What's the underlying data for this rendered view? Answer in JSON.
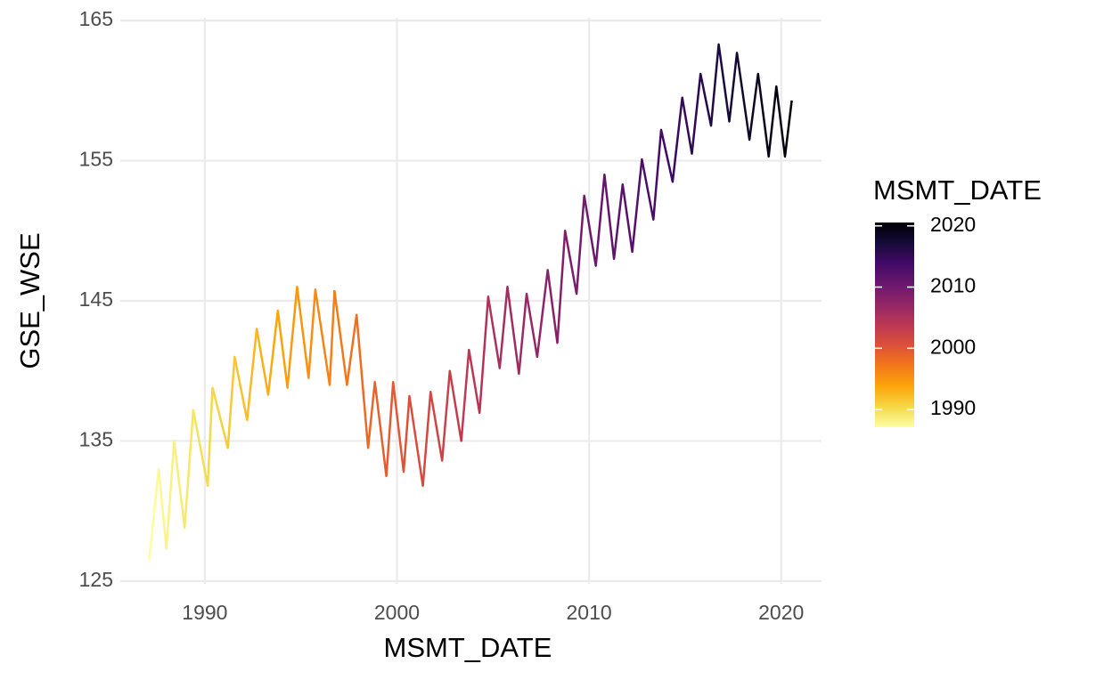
{
  "chart_data": {
    "type": "line",
    "x": [
      1987.1,
      1987.6,
      1988.0,
      1988.4,
      1988.95,
      1989.4,
      1990.15,
      1990.4,
      1991.2,
      1991.55,
      1992.2,
      1992.7,
      1993.3,
      1993.8,
      1994.3,
      1994.8,
      1995.4,
      1995.75,
      1996.5,
      1996.75,
      1997.4,
      1997.9,
      1998.5,
      1998.85,
      1999.45,
      1999.8,
      2000.35,
      2000.65,
      2001.35,
      2001.75,
      2002.35,
      2002.75,
      2003.35,
      2003.75,
      2004.3,
      2004.75,
      2005.35,
      2005.75,
      2006.35,
      2006.75,
      2007.3,
      2007.85,
      2008.35,
      2008.75,
      2009.35,
      2009.75,
      2010.35,
      2010.8,
      2011.3,
      2011.75,
      2012.25,
      2012.75,
      2013.35,
      2013.75,
      2014.35,
      2014.85,
      2015.35,
      2015.8,
      2016.35,
      2016.75,
      2017.3,
      2017.7,
      2018.35,
      2018.8,
      2019.35,
      2019.75,
      2020.2,
      2020.55
    ],
    "values": [
      126.5,
      133,
      127.3,
      135,
      128.8,
      137.2,
      131.8,
      138.8,
      134.5,
      141,
      136.5,
      143,
      138.3,
      144.3,
      138.8,
      146,
      139.5,
      145.8,
      139,
      145.7,
      139,
      144,
      134.5,
      139.2,
      132.5,
      139.2,
      132.8,
      138.2,
      131.8,
      138.5,
      133.6,
      140,
      135,
      141.5,
      137,
      145.3,
      140.2,
      146,
      139.8,
      145.5,
      141,
      147.2,
      142,
      150,
      145.5,
      152.5,
      147.5,
      154,
      148,
      153.3,
      148.5,
      155.1,
      150.8,
      157.2,
      153.5,
      159.5,
      155.5,
      161.2,
      157.5,
      163.3,
      157.8,
      162.7,
      156.5,
      161.2,
      155.3,
      160.3,
      155.3,
      159.3
    ],
    "xlabel": "MSMT_DATE",
    "ylabel": "GSE_WSE",
    "xlim": [
      1985.6,
      2022.1
    ],
    "xticks": [
      1990,
      2000,
      2010,
      2020
    ],
    "ylim": [
      124.8,
      165.2
    ],
    "yticks": [
      125,
      135,
      145,
      155,
      165
    ],
    "grid": true,
    "legend": {
      "title": "MSMT_DATE",
      "ticks": [
        1990,
        2000,
        2010,
        2020
      ],
      "colors": [
        "#fcffa4",
        "#f6d746",
        "#fca50a",
        "#f37819",
        "#dd513a",
        "#bc3754",
        "#932667",
        "#6a176e",
        "#420a68",
        "#160b39",
        "#000004"
      ]
    }
  }
}
